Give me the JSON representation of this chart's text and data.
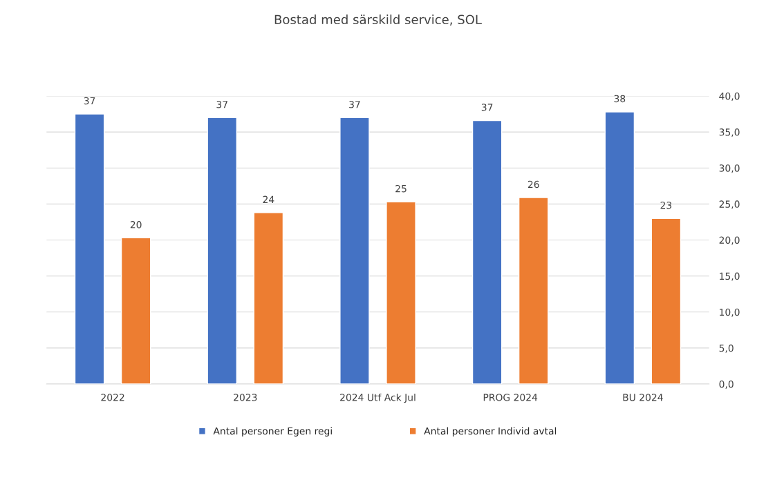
{
  "chart_data": {
    "type": "bar",
    "title": "Bostad med särskild service, SOL",
    "categories": [
      "2022",
      "2023",
      "2024 Utf Ack Jul",
      "PROG 2024",
      "BU 2024"
    ],
    "series": [
      {
        "name": "Antal personer Egen regi",
        "color": "#4472c4",
        "values": [
          37.5,
          37.0,
          37.0,
          36.6,
          37.8
        ],
        "value_labels": [
          "37",
          "37",
          "37",
          "37",
          "38"
        ]
      },
      {
        "name": "Antal personer Individ avtal",
        "color": "#ed7d31",
        "values": [
          20.3,
          23.8,
          25.3,
          25.9,
          23.0
        ],
        "value_labels": [
          "20",
          "24",
          "25",
          "26",
          "23"
        ]
      }
    ],
    "ylim": [
      0,
      40
    ],
    "yticks": [
      {
        "value": 0,
        "label": "0,0"
      },
      {
        "value": 5,
        "label": "5,0"
      },
      {
        "value": 10,
        "label": "10,0"
      },
      {
        "value": 15,
        "label": "15,0"
      },
      {
        "value": 20,
        "label": "20,0"
      },
      {
        "value": 25,
        "label": "25,0"
      },
      {
        "value": 30,
        "label": "30,0"
      },
      {
        "value": 35,
        "label": "35,0"
      },
      {
        "value": 40,
        "label": "40,0"
      }
    ],
    "grid": "y",
    "legend": "bottom"
  }
}
